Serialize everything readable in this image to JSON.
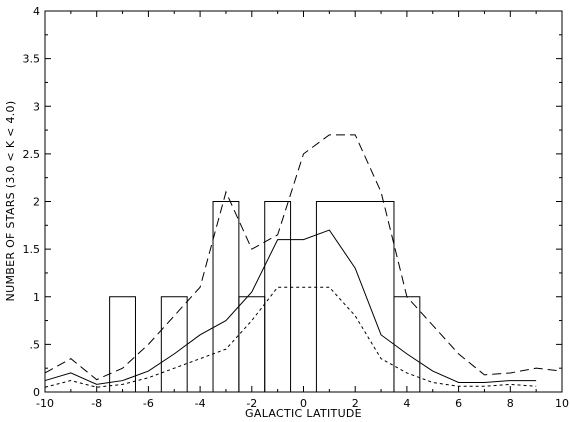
{
  "chart_data": {
    "type": "line",
    "title": "",
    "xlabel": "GALACTIC LATITUDE",
    "ylabel": "NUMBER OF STARS (3.0 < K < 4.0)",
    "xlim": [
      -10,
      10
    ],
    "ylim": [
      0,
      4
    ],
    "grid": false,
    "legend": "none",
    "x_ticks": [
      -10,
      -8,
      -6,
      -4,
      -2,
      0,
      2,
      4,
      6,
      8,
      10
    ],
    "x_tick_labels": [
      "-10",
      "-8",
      "-6",
      "-4",
      "-2",
      "0",
      "2",
      "4",
      "6",
      "8",
      "10"
    ],
    "y_ticks": [
      0,
      0.5,
      1,
      1.5,
      2,
      2.5,
      3,
      3.5,
      4
    ],
    "y_tick_labels": [
      "0",
      ".5",
      "1",
      "1.5",
      "2",
      "2.5",
      "3",
      "3.5",
      "4"
    ],
    "histogram": {
      "style": "solid-step",
      "bins": [
        {
          "x0": -7.5,
          "x1": -6.5,
          "value": 1
        },
        {
          "x0": -5.5,
          "x1": -4.5,
          "value": 1
        },
        {
          "x0": -3.5,
          "x1": -2.5,
          "value": 2
        },
        {
          "x0": -2.5,
          "x1": -1.5,
          "value": 1
        },
        {
          "x0": -1.5,
          "x1": -0.5,
          "value": 2
        },
        {
          "x0": 0.5,
          "x1": 3.5,
          "value": 2
        },
        {
          "x0": 3.5,
          "x1": 4.5,
          "value": 1
        }
      ]
    },
    "series": [
      {
        "style": "solid",
        "x": [
          -10,
          -9,
          -8,
          -7,
          -6,
          -5,
          -4,
          -3,
          -2,
          -1,
          0,
          1,
          2,
          3,
          4,
          5,
          6,
          7,
          8,
          9
        ],
        "y": [
          0.12,
          0.2,
          0.08,
          0.12,
          0.22,
          0.4,
          0.6,
          0.75,
          1.05,
          1.6,
          1.6,
          1.7,
          1.3,
          0.6,
          0.4,
          0.22,
          0.1,
          0.1,
          0.12,
          0.12
        ]
      },
      {
        "style": "dashed",
        "x": [
          -10,
          -9,
          -8,
          -7,
          -6,
          -5,
          -4,
          -3,
          -2,
          -1,
          0,
          1,
          2,
          3,
          4,
          5,
          6,
          7,
          8,
          9,
          10
        ],
        "y": [
          0.2,
          0.35,
          0.13,
          0.25,
          0.5,
          0.8,
          1.1,
          2.1,
          1.5,
          1.65,
          2.5,
          2.7,
          2.7,
          2.1,
          1.0,
          0.7,
          0.4,
          0.18,
          0.2,
          0.25,
          0.22
        ]
      },
      {
        "style": "dotted",
        "x": [
          -10,
          -9,
          -8,
          -7,
          -6,
          -5,
          -4,
          -3,
          -2,
          -1,
          0,
          1,
          2,
          3,
          4,
          5,
          6,
          7,
          8,
          9
        ],
        "y": [
          0.05,
          0.12,
          0.05,
          0.08,
          0.15,
          0.25,
          0.35,
          0.45,
          0.75,
          1.1,
          1.1,
          1.1,
          0.8,
          0.35,
          0.2,
          0.1,
          0.06,
          0.06,
          0.08,
          0.06
        ]
      }
    ]
  }
}
